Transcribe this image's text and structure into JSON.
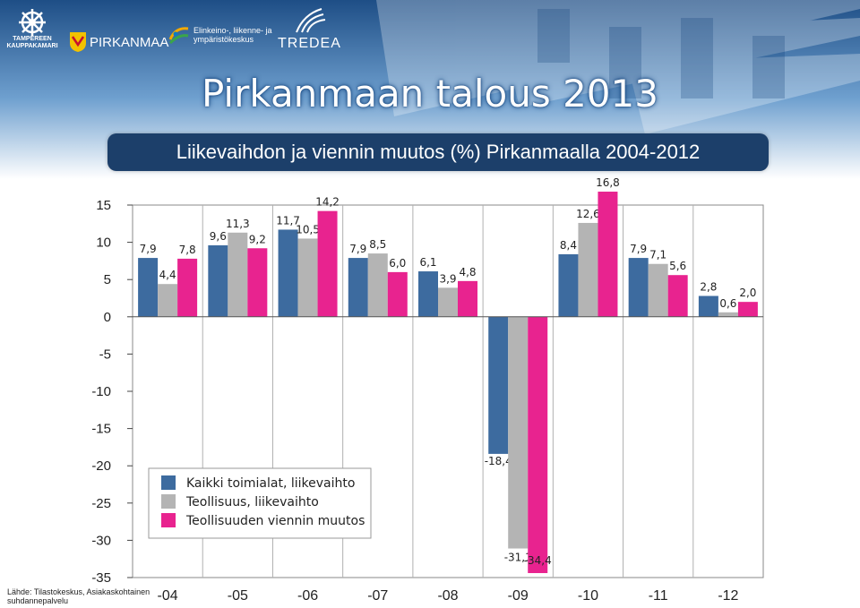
{
  "header": {
    "title": "Pirkanmaan talous 2013",
    "subtitle": "Liikevaihdon ja viennin muutos (%) Pirkanmaalla 2004-2012",
    "logos": [
      {
        "name": "tampereen-kauppakamari",
        "text": "TAMPEREEN KAUPPAKAMARI"
      },
      {
        "name": "pirkanmaa",
        "text": "PIRKANMAA"
      },
      {
        "name": "ely-keskus",
        "text": "Elinkeino-, liikenne- ja ympäristökeskus"
      },
      {
        "name": "tredea",
        "text": "TREDEA"
      }
    ]
  },
  "source": "Lähde: Tilastokeskus, Asiakaskohtainen suhdannepalvelu",
  "chart_data": {
    "type": "bar",
    "categories": [
      "-04",
      "-05",
      "-06",
      "-07",
      "-08",
      "-09",
      "-10",
      "-11",
      "-12"
    ],
    "series": [
      {
        "name": "Kaikki toimialat, liikevaihto",
        "color": "#3d6b9f",
        "values": [
          7.9,
          9.6,
          11.7,
          7.9,
          6.1,
          -18.4,
          8.4,
          7.9,
          2.8
        ]
      },
      {
        "name": "Teollisuus, liikevaihto",
        "color": "#b4b4b4",
        "values": [
          4.4,
          11.3,
          10.5,
          8.5,
          3.9,
          -31.1,
          12.6,
          7.1,
          0.6
        ]
      },
      {
        "name": "Teollisuuden viennin muutos",
        "color": "#e8238f",
        "values": [
          7.8,
          9.2,
          14.2,
          6.0,
          4.8,
          -34.4,
          16.8,
          5.6,
          2.0
        ]
      }
    ],
    "value_labels": [
      [
        "7,9",
        "9,6",
        "11,7",
        "7,9",
        "6,1",
        "-18,4",
        "8,4",
        "7,9",
        "2,8"
      ],
      [
        "4,4",
        "11,3",
        "10,5",
        "8,5",
        "3,9",
        "-31,1",
        "12,6",
        "7,1",
        "0,6"
      ],
      [
        "7,8",
        "9,2",
        "14,2",
        "6,0",
        "4,8",
        "-34,4",
        "16,8",
        "5,6",
        "2,0"
      ]
    ],
    "ylim": [
      -35,
      15
    ],
    "yticks": [
      15,
      10,
      5,
      0,
      -5,
      -10,
      -15,
      -20,
      -25,
      -30,
      -35
    ],
    "ytick_labels": [
      "15",
      "10",
      "5",
      "0",
      "-5",
      "-10",
      "-15",
      "-20",
      "-25",
      "-30",
      "-35"
    ],
    "grid": true,
    "legend_position": "lower-left inside"
  }
}
